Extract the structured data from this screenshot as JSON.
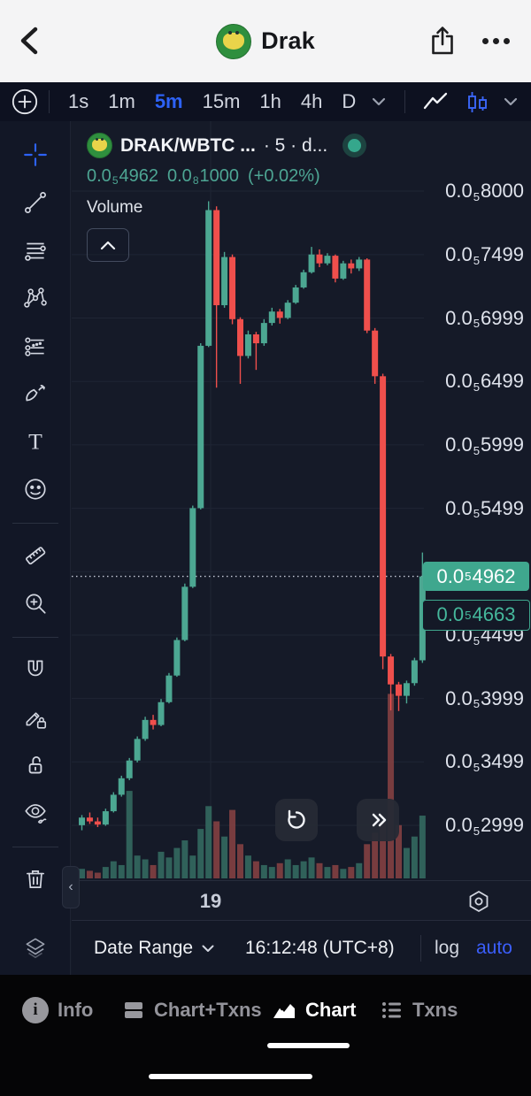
{
  "header": {
    "title": "Drak"
  },
  "toolbar": {
    "timeframes": [
      "1s",
      "1m",
      "5m",
      "15m",
      "1h",
      "4h",
      "D"
    ],
    "active": "5m"
  },
  "chart_header": {
    "symbol": "DRAK/WBTC ...",
    "meta": "· 5 · d...",
    "price": {
      "prefix": "0.0",
      "sub": "5",
      "digits": "4962"
    },
    "secondary": {
      "prefix": "0.0",
      "sub": "8",
      "digits": "1000"
    },
    "change": "(+0.02%)"
  },
  "volume_pane": {
    "label": "Volume"
  },
  "price_scale": {
    "current": {
      "prefix": "0.0",
      "sub": "5",
      "digits": "4962"
    },
    "counter": {
      "prefix": "0.0",
      "sub": "5",
      "digits": "4663"
    }
  },
  "time_axis": {
    "label": "19"
  },
  "bottom_toolbar": {
    "date_range": "Date Range",
    "time": "16:12:48 (UTC+8)",
    "log": "log",
    "auto": "auto"
  },
  "tab_bar": {
    "tabs": [
      "Info",
      "Chart+Txns",
      "Chart",
      "Txns"
    ],
    "active": "Chart"
  },
  "sidebar_tools": [
    "crosshair",
    "trend-line",
    "fib-retracement",
    "xabcd-pattern",
    "forecast",
    "brush",
    "text",
    "emoji",
    "measure",
    "zoom-in",
    "magnet",
    "drawing-lock-pencil",
    "lock-all",
    "hide-drawings",
    "trash",
    "object-tree"
  ],
  "icons": {
    "header": [
      "back-chevron",
      "share-ios",
      "ellipsis"
    ],
    "toolbar": [
      "add-circle",
      "chevron-down",
      "line-chart",
      "candlestick-chart",
      "chevron-down"
    ],
    "overlay": [
      "status-dot",
      "collapse-volume-chevron",
      "reload",
      "fast-forward"
    ],
    "time_axis": [
      "settings-hexagon"
    ]
  },
  "colors": {
    "up": "#4ca792",
    "down": "#ef4f4c",
    "vol_up": "#356f63",
    "vol_down": "#8a4343",
    "accent": "#2d62f6",
    "badge": "#3fa78e",
    "teal_text": "#4da593",
    "grid": "#1f2534"
  },
  "chart_data": {
    "type": "candlestick",
    "title": "DRAK/WBTC · 5m",
    "price_format": "0.0₅#### (ticks show mantissa after prefix 0.0 + subscript 5)",
    "x_axis_labels": [
      "19"
    ],
    "y_ticks": [
      8000,
      7499,
      6999,
      6499,
      5999,
      5499,
      4499,
      3999,
      3499,
      2999
    ],
    "y_gridlines": [
      8000,
      7499,
      6999,
      6499,
      5999,
      5499,
      4999,
      4499,
      3999,
      3499,
      2999
    ],
    "ylim": [
      2800,
      8150
    ],
    "current_price": 4962,
    "counter_price": 4663,
    "ohlc": [
      [
        3000,
        3080,
        2960,
        3060
      ],
      [
        3060,
        3100,
        3010,
        3030
      ],
      [
        3030,
        3060,
        2985,
        3005
      ],
      [
        3005,
        3130,
        2995,
        3110
      ],
      [
        3110,
        3260,
        3100,
        3240
      ],
      [
        3240,
        3390,
        3225,
        3370
      ],
      [
        3370,
        3530,
        3355,
        3510
      ],
      [
        3510,
        3700,
        3495,
        3680
      ],
      [
        3680,
        3855,
        3665,
        3830
      ],
      [
        3830,
        3870,
        3755,
        3790
      ],
      [
        3790,
        3995,
        3780,
        3970
      ],
      [
        3970,
        4200,
        3960,
        4180
      ],
      [
        4180,
        4480,
        4170,
        4460
      ],
      [
        4460,
        4905,
        4450,
        4880
      ],
      [
        4880,
        5520,
        4870,
        5500
      ],
      [
        5500,
        6800,
        5490,
        6780
      ],
      [
        6780,
        7920,
        6770,
        7850
      ],
      [
        7850,
        7880,
        6450,
        7100
      ],
      [
        7100,
        7520,
        7080,
        7480
      ],
      [
        7480,
        7500,
        6950,
        6990
      ],
      [
        6990,
        7005,
        6480,
        6700
      ],
      [
        6700,
        6900,
        6680,
        6870
      ],
      [
        6870,
        6890,
        6590,
        6800
      ],
      [
        6800,
        6990,
        6780,
        6960
      ],
      [
        6960,
        7080,
        6940,
        7050
      ],
      [
        7050,
        7070,
        6955,
        7000
      ],
      [
        7000,
        7140,
        6990,
        7120
      ],
      [
        7120,
        7260,
        7110,
        7240
      ],
      [
        7240,
        7380,
        7230,
        7360
      ],
      [
        7360,
        7560,
        7350,
        7500
      ],
      [
        7500,
        7540,
        7400,
        7430
      ],
      [
        7430,
        7510,
        7415,
        7490
      ],
      [
        7490,
        7500,
        7280,
        7310
      ],
      [
        7310,
        7450,
        7300,
        7430
      ],
      [
        7430,
        7460,
        7350,
        7390
      ],
      [
        7390,
        7480,
        7370,
        7460
      ],
      [
        7460,
        7470,
        6880,
        6900
      ],
      [
        6900,
        6920,
        6480,
        6540
      ],
      [
        6540,
        6560,
        4230,
        4330
      ],
      [
        4330,
        4350,
        3905,
        4110
      ],
      [
        4110,
        4130,
        3900,
        4020
      ],
      [
        4020,
        4140,
        3960,
        4120
      ],
      [
        4120,
        4320,
        4100,
        4300
      ],
      [
        4300,
        5150,
        4280,
        4962
      ]
    ],
    "volume_rel": [
      5,
      4,
      3,
      6,
      9,
      7,
      46,
      12,
      10,
      7,
      14,
      11,
      16,
      20,
      12,
      26,
      38,
      30,
      22,
      36,
      18,
      12,
      9,
      7,
      6,
      8,
      10,
      7,
      9,
      11,
      8,
      6,
      7,
      5,
      6,
      8,
      18,
      24,
      30,
      97,
      28,
      16,
      22,
      33
    ]
  }
}
